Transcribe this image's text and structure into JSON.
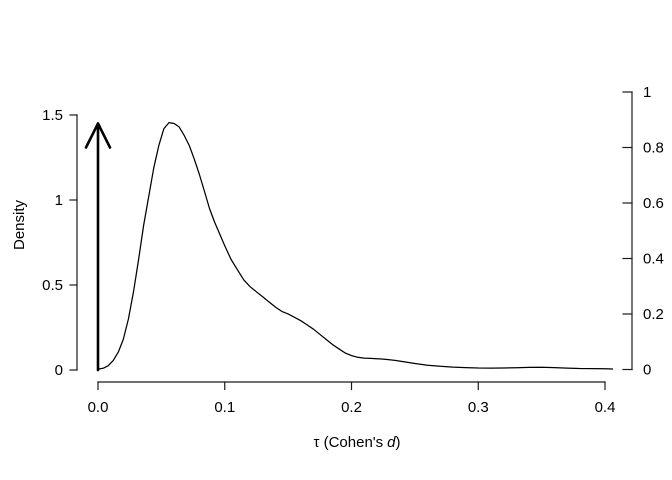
{
  "figure": {
    "background": "#ffffff",
    "line_color": "#000000",
    "text_color": "#000000"
  },
  "chart_data": {
    "type": "line",
    "title": "",
    "xlabel": "τ (Cohen's d)",
    "xlabel_parts": {
      "prefix": "τ (Cohen's",
      "italic": "d",
      "suffix": ")"
    },
    "ylabel_left": "Density",
    "ylabel_right": "",
    "xlim": [
      0,
      0.4
    ],
    "ylim_left": [
      0,
      1.5
    ],
    "ylim_right": [
      0,
      1
    ],
    "grid": false,
    "legend": null,
    "x_ticks": {
      "values": [
        0.0,
        0.1,
        0.2,
        0.3,
        0.4
      ],
      "labels": [
        "0.0",
        "0.1",
        "0.2",
        "0.3",
        "0.4"
      ]
    },
    "left_ticks": {
      "values": [
        0,
        0.5,
        1,
        1.5
      ],
      "labels": [
        "0",
        "0.5",
        "1",
        "1.5"
      ]
    },
    "right_ticks": {
      "values": [
        0,
        0.2,
        0.4,
        0.6,
        0.8,
        1
      ],
      "labels": [
        "0",
        "0.2",
        "0.4",
        "0.6",
        "0.8",
        "1"
      ]
    },
    "series": [
      {
        "name": "tau-posterior-density",
        "type": "line",
        "color": "#000000",
        "points": [
          [
            0.0,
            0.005
          ],
          [
            0.004,
            0.01
          ],
          [
            0.008,
            0.025
          ],
          [
            0.012,
            0.055
          ],
          [
            0.016,
            0.105
          ],
          [
            0.02,
            0.18
          ],
          [
            0.024,
            0.3
          ],
          [
            0.028,
            0.46
          ],
          [
            0.032,
            0.65
          ],
          [
            0.036,
            0.85
          ],
          [
            0.04,
            1.02
          ],
          [
            0.044,
            1.19
          ],
          [
            0.048,
            1.32
          ],
          [
            0.052,
            1.42
          ],
          [
            0.056,
            1.455
          ],
          [
            0.06,
            1.45
          ],
          [
            0.064,
            1.43
          ],
          [
            0.068,
            1.38
          ],
          [
            0.072,
            1.32
          ],
          [
            0.076,
            1.24
          ],
          [
            0.08,
            1.15
          ],
          [
            0.084,
            1.05
          ],
          [
            0.088,
            0.95
          ],
          [
            0.092,
            0.87
          ],
          [
            0.096,
            0.8
          ],
          [
            0.1,
            0.73
          ],
          [
            0.105,
            0.65
          ],
          [
            0.11,
            0.59
          ],
          [
            0.115,
            0.53
          ],
          [
            0.12,
            0.49
          ],
          [
            0.125,
            0.46
          ],
          [
            0.13,
            0.43
          ],
          [
            0.135,
            0.4
          ],
          [
            0.14,
            0.37
          ],
          [
            0.145,
            0.345
          ],
          [
            0.15,
            0.33
          ],
          [
            0.155,
            0.31
          ],
          [
            0.16,
            0.29
          ],
          [
            0.165,
            0.265
          ],
          [
            0.17,
            0.24
          ],
          [
            0.175,
            0.21
          ],
          [
            0.18,
            0.18
          ],
          [
            0.185,
            0.15
          ],
          [
            0.19,
            0.125
          ],
          [
            0.195,
            0.1
          ],
          [
            0.2,
            0.085
          ],
          [
            0.205,
            0.075
          ],
          [
            0.21,
            0.07
          ],
          [
            0.215,
            0.068
          ],
          [
            0.22,
            0.066
          ],
          [
            0.225,
            0.064
          ],
          [
            0.23,
            0.06
          ],
          [
            0.235,
            0.056
          ],
          [
            0.24,
            0.05
          ],
          [
            0.245,
            0.044
          ],
          [
            0.25,
            0.038
          ],
          [
            0.26,
            0.028
          ],
          [
            0.27,
            0.022
          ],
          [
            0.28,
            0.017
          ],
          [
            0.29,
            0.014
          ],
          [
            0.3,
            0.012
          ],
          [
            0.31,
            0.011
          ],
          [
            0.32,
            0.012
          ],
          [
            0.33,
            0.013
          ],
          [
            0.34,
            0.015
          ],
          [
            0.35,
            0.016
          ],
          [
            0.36,
            0.014
          ],
          [
            0.37,
            0.011
          ],
          [
            0.38,
            0.009
          ],
          [
            0.39,
            0.008
          ],
          [
            0.4,
            0.007
          ],
          [
            0.406,
            0.006
          ]
        ]
      },
      {
        "name": "point-mass-at-zero-arrow",
        "type": "arrow",
        "color": "#000000",
        "x": 0,
        "from_density": 0,
        "to_density": 1.45
      }
    ]
  }
}
